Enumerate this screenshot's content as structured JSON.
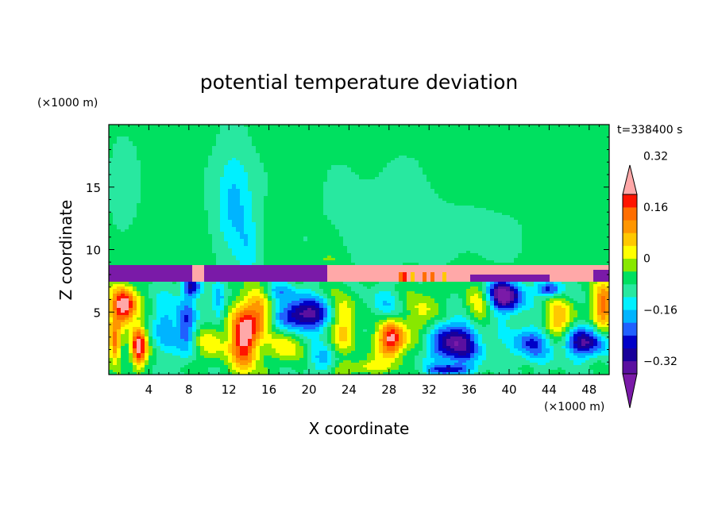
{
  "chart_data": {
    "type": "heatmap",
    "title": "potential temperature deviation",
    "xlabel": "X coordinate",
    "ylabel": "Z coordinate",
    "x_unit_label": "(×1000 m)",
    "y_unit_label": "(×1000 m)",
    "time_label": "t=338400 s",
    "xlim": [
      0,
      50
    ],
    "ylim": [
      0,
      20
    ],
    "x_ticks": [
      4,
      8,
      12,
      16,
      20,
      24,
      28,
      32,
      36,
      40,
      44,
      48
    ],
    "x_tick_labels": [
      "4",
      "8",
      "12",
      "16",
      "20",
      "24",
      "28",
      "32",
      "36",
      "40",
      "44",
      "48"
    ],
    "y_ticks": [
      5,
      10,
      15
    ],
    "y_tick_labels": [
      "5",
      "10",
      "15"
    ],
    "colorbar": {
      "levels": [
        -0.4,
        -0.36,
        -0.32,
        -0.28,
        -0.24,
        -0.2,
        -0.16,
        -0.12,
        -0.08,
        -0.04,
        0,
        0.04,
        0.08,
        0.12,
        0.16,
        0.2,
        0.24,
        0.28,
        0.32,
        0.36,
        0.4
      ],
      "colors": [
        "#7a1aa8",
        "#5a10a0",
        "#18009a",
        "#0000c8",
        "#2060ff",
        "#00b4ff",
        "#00f0ff",
        "#28e8a0",
        "#00e060",
        "#88e800",
        "#ffff00",
        "#ffc800",
        "#ff9600",
        "#ff6e00",
        "#ff1400",
        "#ffa8a8"
      ],
      "tick_values": [
        0.32,
        0.16,
        0,
        -0.16,
        -0.32
      ],
      "tick_labels": [
        "0.32",
        "0.16",
        "0",
        "−0.16",
        "−0.32"
      ],
      "extend": "both"
    },
    "regions": [
      {
        "z_range": [
          8.8,
          20
        ],
        "dominant": 0.01,
        "note": "upper layer mostly near zero with slightly negative patches"
      },
      {
        "x_range": [
          9.5,
          15.5
        ],
        "z_range": [
          9,
          18
        ],
        "value": -0.1
      },
      {
        "z_range": [
          7.5,
          8.8
        ],
        "x_range": [
          0,
          22.5
        ],
        "value": -0.4
      },
      {
        "z_range": [
          7.5,
          8.8
        ],
        "x_range": [
          22.5,
          50
        ],
        "value": 0.4
      },
      {
        "z_range": [
          0,
          7.5
        ],
        "note": "turbulent lower layer with alternating warm and cold eddies"
      }
    ]
  }
}
